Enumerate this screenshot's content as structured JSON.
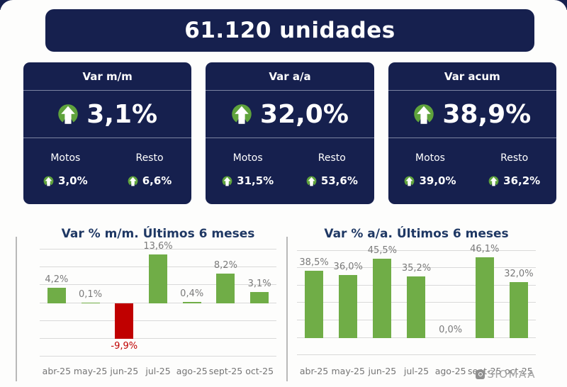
{
  "header": {
    "title": "61.120 unidades"
  },
  "cards": [
    {
      "title": "Var m/m",
      "value": "3,1%",
      "motos_label": "Motos",
      "motos_value": "3,0%",
      "resto_label": "Resto",
      "resto_value": "6,6%"
    },
    {
      "title": "Var a/a",
      "value": "32,0%",
      "motos_label": "Motos",
      "motos_value": "31,5%",
      "resto_label": "Resto",
      "resto_value": "53,6%"
    },
    {
      "title": "Var acum",
      "value": "38,9%",
      "motos_label": "Motos",
      "motos_value": "39,0%",
      "resto_label": "Resto",
      "resto_value": "36,2%"
    }
  ],
  "chart_data": [
    {
      "type": "bar",
      "title": "Var % m/m. Últimos 6 meses",
      "categories": [
        "abr-25",
        "may-25",
        "jun-25",
        "jul-25",
        "ago-25",
        "sept-25",
        "oct-25"
      ],
      "values": [
        4.2,
        0.1,
        -9.9,
        13.6,
        0.4,
        8.2,
        3.1
      ],
      "labels": [
        "4,2%",
        "0,1%",
        "-9,9%",
        "13,6%",
        "0,4%",
        "8,2%",
        "3,1%"
      ],
      "ylim": [
        -15.5,
        16.5
      ],
      "gridlines": [
        15,
        10,
        5,
        0,
        -5,
        -10,
        -15
      ],
      "grid": true,
      "legend": false,
      "bar_color": "#70AD47",
      "negative_color": "#C00000",
      "label_color": "#7A7A7A",
      "negative_label_color": "#C00000"
    },
    {
      "type": "bar",
      "title": "Var % a/a. Últimos 6 meses",
      "categories": [
        "abr-25",
        "may-25",
        "jun-25",
        "jul-25",
        "ago-25",
        "sept-25",
        "oct-25"
      ],
      "values": [
        38.5,
        36.0,
        45.5,
        35.2,
        0.0,
        46.1,
        32.0
      ],
      "labels": [
        "38,5%",
        "36,0%",
        "45,5%",
        "35,2%",
        "0,0%",
        "46,1%",
        "32,0%"
      ],
      "ylim": [
        -12,
        54
      ],
      "gridlines": [
        50,
        40,
        30,
        20,
        10,
        0,
        -10
      ],
      "grid": true,
      "legend": false,
      "bar_color": "#70AD47",
      "negative_color": "#C00000",
      "label_color": "#7A7A7A",
      "negative_label_color": "#C00000"
    }
  ],
  "brand": {
    "name": "SIOMAA"
  },
  "colors": {
    "navy": "#16204E",
    "bar_green": "#70AD47",
    "bar_red": "#C00000",
    "arrow_green": "#5FA33C",
    "title_blue": "#1F3864",
    "gridline": "#D9D9D9",
    "axis_text": "#757575"
  }
}
